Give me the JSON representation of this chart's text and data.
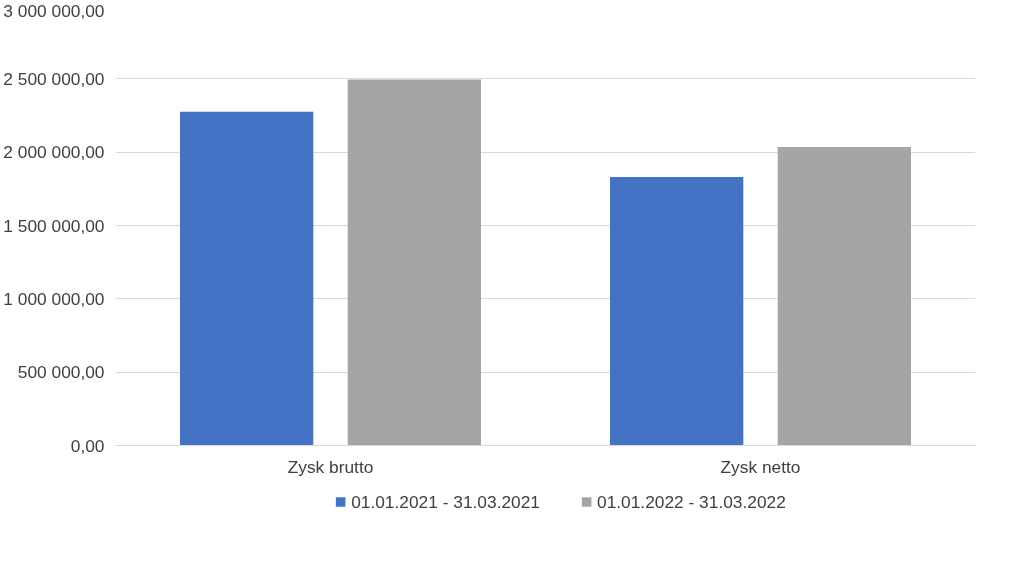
{
  "chart_data": {
    "type": "bar",
    "categories": [
      "Zysk brutto",
      "Zysk netto"
    ],
    "series": [
      {
        "name": "01.01.2021 - 31.03.2021",
        "color": "#4472c4",
        "values": [
          2275000,
          1830000
        ]
      },
      {
        "name": "01.01.2022 - 31.03.2022",
        "color": "#a5a5a5",
        "values": [
          2495000,
          2035000
        ]
      }
    ],
    "ylim": [
      0,
      3000000
    ],
    "yticks": [
      {
        "value": 0,
        "label": "0,00"
      },
      {
        "value": 500000,
        "label": "500 000,00"
      },
      {
        "value": 1000000,
        "label": "1 000 000,00"
      },
      {
        "value": 1500000,
        "label": "1 500 000,00"
      },
      {
        "value": 2000000,
        "label": "2 000 000,00"
      },
      {
        "value": 2500000,
        "label": "2 500 000,00"
      },
      {
        "value": 3000000,
        "label": "3 000 000,00"
      }
    ],
    "grid": "y",
    "legend": "bottom"
  }
}
